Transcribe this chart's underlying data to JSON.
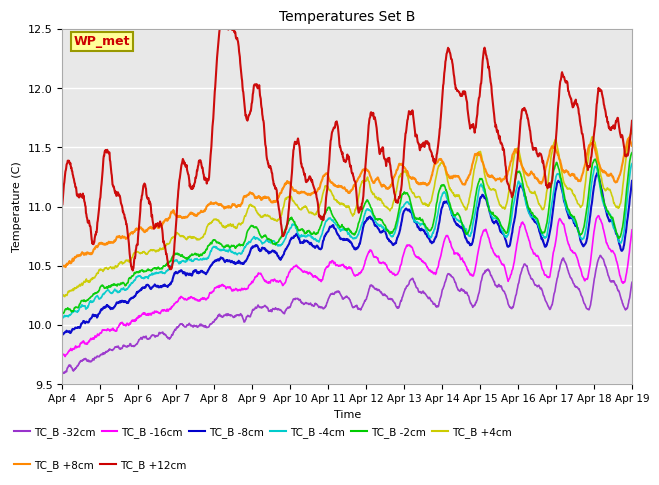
{
  "title": "Temperatures Set B",
  "xlabel": "Time",
  "ylabel": "Temperature (C)",
  "ylim": [
    9.5,
    12.5
  ],
  "x_ticks_labels": [
    "Apr 4",
    "Apr 5",
    "Apr 6",
    "Apr 7",
    "Apr 8",
    "Apr 9",
    "Apr 10",
    "Apr 11",
    "Apr 12",
    "Apr 13",
    "Apr 14",
    "Apr 15",
    "Apr 16",
    "Apr 17",
    "Apr 18",
    "Apr 19"
  ],
  "x_ticks_pos": [
    0,
    1,
    2,
    3,
    4,
    5,
    6,
    7,
    8,
    9,
    10,
    11,
    12,
    13,
    14,
    15
  ],
  "wp_met_label": "WP_met",
  "wp_met_color": "#cc0000",
  "wp_met_bg": "#ffff99",
  "wp_met_border": "#999900",
  "series": [
    {
      "label": "TC_B -32cm",
      "color": "#9933cc",
      "lw": 1.2,
      "base": 9.6,
      "final": 10.4,
      "osc_start": 0.05,
      "osc_end": 0.2,
      "osc_freq": 1.0,
      "phase": 0.0
    },
    {
      "label": "TC_B -16cm",
      "color": "#ff00ff",
      "lw": 1.2,
      "base": 9.75,
      "final": 10.7,
      "osc_start": 0.06,
      "osc_end": 0.25,
      "osc_freq": 1.0,
      "phase": 0.4
    },
    {
      "label": "TC_B -8cm",
      "color": "#0000cc",
      "lw": 1.5,
      "base": 9.9,
      "final": 11.0,
      "osc_start": 0.07,
      "osc_end": 0.28,
      "osc_freq": 1.0,
      "phase": 0.7
    },
    {
      "label": "TC_B -4cm",
      "color": "#00cccc",
      "lw": 1.2,
      "base": 10.05,
      "final": 11.05,
      "osc_start": 0.07,
      "osc_end": 0.28,
      "osc_freq": 1.0,
      "phase": 1.0
    },
    {
      "label": "TC_B -2cm",
      "color": "#00cc00",
      "lw": 1.2,
      "base": 10.1,
      "final": 11.1,
      "osc_start": 0.08,
      "osc_end": 0.3,
      "osc_freq": 1.0,
      "phase": 1.2
    },
    {
      "label": "TC_B +4cm",
      "color": "#cccc00",
      "lw": 1.2,
      "base": 10.25,
      "final": 11.3,
      "osc_start": 0.09,
      "osc_end": 0.28,
      "osc_freq": 1.0,
      "phase": 1.5
    },
    {
      "label": "TC_B +8cm",
      "color": "#ff8800",
      "lw": 1.5,
      "base": 10.5,
      "final": 11.4,
      "osc_start": 0.06,
      "osc_end": 0.15,
      "osc_freq": 1.0,
      "phase": 1.8
    },
    {
      "label": "TC_B +12cm",
      "color": "#cc0000",
      "lw": 1.5,
      "base": 11.0,
      "final": 11.5,
      "osc_start": 0.5,
      "osc_end": 0.5,
      "osc_freq": 1.0,
      "phase": 0.0
    }
  ],
  "bg_color": "#e8e8e8",
  "fig_bg": "#ffffff",
  "grid_color": "#ffffff",
  "n_points": 1500
}
